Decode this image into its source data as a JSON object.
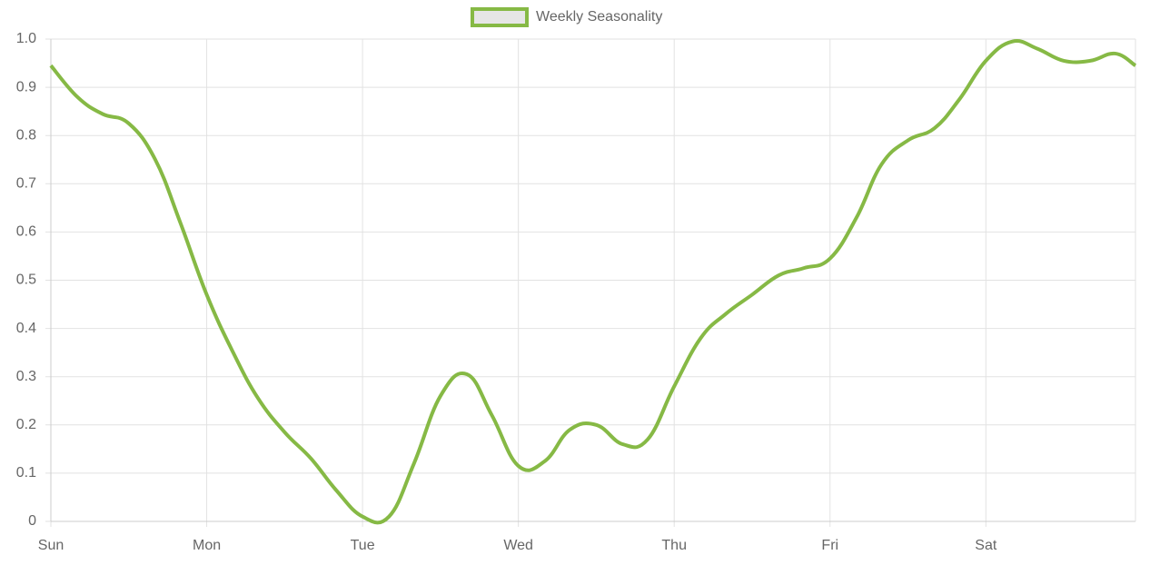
{
  "chart_data": {
    "type": "line",
    "series": [
      {
        "name": "Weekly Seasonality",
        "color": "#86b945",
        "x": [
          0,
          0.17,
          0.33,
          0.5,
          0.67,
          0.83,
          1.0,
          1.17,
          1.33,
          1.5,
          1.67,
          1.83,
          2.0,
          2.17,
          2.33,
          2.5,
          2.67,
          2.83,
          3.0,
          3.17,
          3.33,
          3.5,
          3.67,
          3.83,
          4.0,
          4.17,
          4.33,
          4.5,
          4.67,
          4.83,
          5.0,
          5.17,
          5.33,
          5.5,
          5.67,
          5.83,
          6.0,
          6.17,
          6.33,
          6.5,
          6.67,
          6.83,
          6.96
        ],
        "values": [
          0.945,
          0.88,
          0.845,
          0.825,
          0.75,
          0.62,
          0.47,
          0.35,
          0.255,
          0.185,
          0.13,
          0.065,
          0.01,
          0.01,
          0.12,
          0.26,
          0.305,
          0.22,
          0.115,
          0.125,
          0.19,
          0.2,
          0.16,
          0.17,
          0.28,
          0.38,
          0.43,
          0.47,
          0.51,
          0.525,
          0.545,
          0.63,
          0.74,
          0.79,
          0.815,
          0.875,
          0.955,
          0.995,
          0.98,
          0.955,
          0.955,
          0.97,
          0.945
        ]
      }
    ],
    "xlim": [
      0,
      6.96
    ],
    "xticks": [
      {
        "value": 0,
        "label": "Sun"
      },
      {
        "value": 1,
        "label": "Mon"
      },
      {
        "value": 2,
        "label": "Tue"
      },
      {
        "value": 3,
        "label": "Wed"
      },
      {
        "value": 4,
        "label": "Thu"
      },
      {
        "value": 5,
        "label": "Fri"
      },
      {
        "value": 6,
        "label": "Sat"
      }
    ],
    "ylim": [
      0,
      1
    ],
    "yticks": [
      0,
      0.1,
      0.2,
      0.3,
      0.4,
      0.5,
      0.6,
      0.7,
      0.8,
      0.9,
      {
        "value": 1,
        "label": "1.0"
      }
    ],
    "grid": true,
    "legend": "top"
  }
}
